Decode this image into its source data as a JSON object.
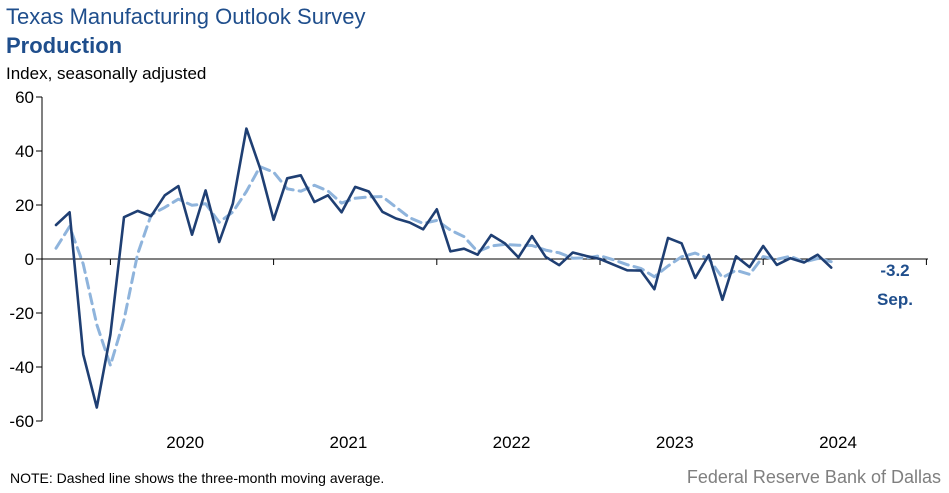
{
  "header": {
    "title": "Texas Manufacturing Outlook Survey",
    "subtitle": "Production",
    "y_unit": "Index, seasonally adjusted"
  },
  "footer": {
    "note": "NOTE: Dashed line shows the three-month  moving average.",
    "source": "Federal Reserve Bank of Dallas"
  },
  "colors": {
    "index": "#1f3f73",
    "moving_average": "#8fb4dc",
    "title": "#1f4e8c",
    "source": "#7f7f7f"
  },
  "chart_data": {
    "type": "line",
    "title": "Production",
    "ylabel": "Index, seasonally adjusted",
    "ylim": [
      -60,
      60
    ],
    "y_ticks": [
      60,
      40,
      20,
      0,
      -20,
      -40,
      -60
    ],
    "x_start": "2019-09",
    "x_end": "2024-09",
    "x_tick_labels": [
      "2020",
      "2021",
      "2022",
      "2023",
      "2024"
    ],
    "grid": false,
    "series": [
      {
        "style": "solid",
        "values": [
          12.6,
          17.3,
          -35.3,
          -55.0,
          -28.0,
          15.5,
          17.8,
          15.9,
          23.6,
          27.0,
          9.0,
          25.4,
          6.3,
          20.5,
          48.3,
          33.7,
          14.5,
          29.9,
          31.0,
          21.1,
          23.6,
          17.3,
          26.7,
          25.0,
          17.5,
          15.0,
          13.5,
          11.0,
          18.4,
          2.8,
          3.8,
          1.6,
          8.9,
          5.8,
          0.6,
          8.5,
          0.8,
          -2.3,
          2.4,
          1.1,
          0.0,
          -2.1,
          -4.2,
          -4.3,
          -11.2,
          7.8,
          5.8,
          -7.0,
          1.5,
          -15.1,
          1.0,
          -3.0,
          4.8,
          -2.2,
          0.3,
          -1.3,
          1.6,
          -3.2
        ]
      },
      {
        "style": "dashed",
        "values": [
          4.0,
          12.0,
          -1.8,
          -24.3,
          -39.4,
          -22.5,
          1.8,
          16.4,
          19.1,
          22.2,
          19.9,
          20.5,
          13.6,
          17.4,
          25.0,
          34.2,
          32.2,
          26.0,
          25.1,
          27.3,
          25.2,
          20.7,
          22.5,
          23.0,
          23.1,
          19.2,
          15.3,
          13.2,
          14.3,
          10.7,
          8.3,
          2.7,
          4.8,
          5.4,
          5.1,
          5.0,
          3.3,
          2.3,
          0.3,
          0.4,
          1.2,
          -0.3,
          -2.1,
          -3.5,
          -6.6,
          -2.6,
          0.8,
          2.2,
          0.1,
          -6.9,
          -4.2,
          -5.7,
          0.9,
          -0.1,
          1.0,
          -1.1,
          0.2,
          -1.0
        ]
      }
    ],
    "annotation": {
      "value": "-3.2",
      "label": "Sep."
    }
  }
}
